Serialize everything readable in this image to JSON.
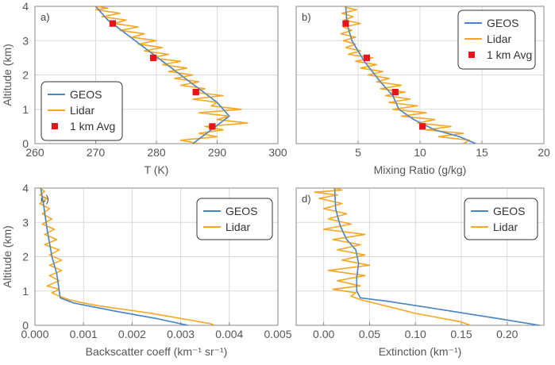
{
  "colors": {
    "model": "#4a86c5",
    "lidar": "#f5a623",
    "avg": "#e8141b",
    "grid": "#d9d9d9",
    "frame": "#888888"
  },
  "chart_data": [
    {
      "type": "line",
      "panel_label": "a)",
      "xlabel": "T (K)",
      "ylabel": "Altitude (km)",
      "xlim": [
        260,
        300
      ],
      "ylim": [
        0,
        4
      ],
      "xticks": [
        "260",
        "270",
        "280",
        "290",
        "300"
      ],
      "yticks": [
        "0",
        "1",
        "2",
        "3",
        "4"
      ],
      "legend": [
        "GEOS",
        "Lidar",
        "1 km Avg"
      ],
      "legend_position": "lower-left",
      "series": [
        {
          "name": "GEOS",
          "x": [
            286,
            289,
            292,
            290,
            287,
            284,
            281,
            278,
            275,
            272,
            270
          ],
          "y": [
            0,
            0.4,
            0.8,
            1.2,
            1.6,
            2.0,
            2.4,
            2.8,
            3.2,
            3.6,
            4.0
          ]
        },
        {
          "name": "Lidar",
          "x": [
            287,
            284,
            290,
            287,
            291,
            288,
            295,
            290,
            292,
            287,
            294,
            289,
            290,
            286,
            291,
            286,
            288,
            284,
            287,
            283,
            286,
            282,
            285,
            281,
            284,
            279,
            282,
            278,
            281,
            277,
            280,
            276,
            278,
            274,
            277,
            273,
            275,
            271,
            274,
            270,
            272,
            270,
            271
          ],
          "y": [
            0.0,
            0.1,
            0.2,
            0.3,
            0.4,
            0.5,
            0.6,
            0.7,
            0.8,
            0.9,
            1.0,
            1.1,
            1.2,
            1.3,
            1.4,
            1.5,
            1.6,
            1.7,
            1.8,
            1.9,
            2.0,
            2.1,
            2.2,
            2.3,
            2.4,
            2.5,
            2.6,
            2.7,
            2.8,
            2.9,
            3.0,
            3.1,
            3.2,
            3.3,
            3.4,
            3.5,
            3.6,
            3.7,
            3.8,
            3.9,
            3.95,
            4.0,
            4.0
          ]
        },
        {
          "name": "1 km Avg",
          "x": [
            289.2,
            286.5,
            279.5,
            272.8
          ],
          "y": [
            0.5,
            1.5,
            2.5,
            3.5
          ]
        }
      ]
    },
    {
      "type": "line",
      "panel_label": "b)",
      "xlabel": "Mixing Ratio (g/kg)",
      "ylabel": "",
      "xlim": [
        0,
        20
      ],
      "ylim": [
        0,
        4
      ],
      "xticks": [
        "5",
        "10",
        "15",
        "20"
      ],
      "yticks": [],
      "legend": [
        "GEOS",
        "Lidar",
        "1 km Avg"
      ],
      "legend_position": "top-right",
      "series": [
        {
          "name": "GEOS",
          "x": [
            14.5,
            13.2,
            11.2,
            9.5,
            8.3,
            7.8,
            6.8,
            5.5,
            4.5,
            4.1,
            4.0
          ],
          "y": [
            0,
            0.2,
            0.4,
            0.7,
            1.0,
            1.4,
            1.8,
            2.4,
            3.0,
            3.5,
            4.0
          ]
        },
        {
          "name": "Lidar",
          "x": [
            13.5,
            14.0,
            11.5,
            13.5,
            10.5,
            12.5,
            9.8,
            11.2,
            8.5,
            10.5,
            7.8,
            9.8,
            7.5,
            9.2,
            7.2,
            8.8,
            6.8,
            8.5,
            6.5,
            7.5,
            5.8,
            7.0,
            5.2,
            6.5,
            4.8,
            6.2,
            4.2,
            5.2,
            4.0,
            4.8,
            3.8,
            4.8,
            3.6,
            4.5,
            3.8,
            5.2,
            3.9,
            4.6,
            3.7,
            4.9,
            4.2,
            3.9
          ],
          "y": [
            0.0,
            0.1,
            0.2,
            0.3,
            0.4,
            0.5,
            0.6,
            0.7,
            0.8,
            0.9,
            1.0,
            1.1,
            1.2,
            1.3,
            1.4,
            1.5,
            1.6,
            1.7,
            1.8,
            1.9,
            2.0,
            2.1,
            2.2,
            2.3,
            2.4,
            2.5,
            2.6,
            2.7,
            2.8,
            2.9,
            3.0,
            3.1,
            3.2,
            3.3,
            3.4,
            3.5,
            3.6,
            3.7,
            3.8,
            3.9,
            3.95,
            4.0
          ]
        },
        {
          "name": "1 km Avg",
          "x": [
            10.2,
            8.0,
            5.7,
            4.0
          ],
          "y": [
            0.5,
            1.5,
            2.5,
            3.5
          ]
        }
      ]
    },
    {
      "type": "line",
      "panel_label": "c)",
      "xlabel": "Backscatter coeff (km⁻¹ sr⁻¹)",
      "ylabel": "Altitude (km)",
      "xlim": [
        0,
        0.005
      ],
      "ylim": [
        0,
        4
      ],
      "xticks": [
        "0.000",
        "0.001",
        "0.002",
        "0.003",
        "0.004",
        "0.005"
      ],
      "yticks": [
        "0",
        "1",
        "2",
        "3",
        "4"
      ],
      "legend": [
        "GEOS",
        "Lidar"
      ],
      "legend_position": "top-right",
      "series": [
        {
          "name": "GEOS",
          "x": [
            0.00315,
            0.0025,
            0.0017,
            0.0008,
            0.00052,
            0.0005,
            0.00045,
            0.00035,
            0.00025,
            0.00018,
            0.00012
          ],
          "y": [
            0,
            0.2,
            0.4,
            0.65,
            0.8,
            1.0,
            1.5,
            2.0,
            2.8,
            3.5,
            4.0
          ]
        },
        {
          "name": "Lidar",
          "x": [
            0.0037,
            0.0036,
            0.0032,
            0.0028,
            0.0024,
            0.0019,
            0.0014,
            0.001,
            0.0007,
            0.0005,
            0.00035,
            0.0005,
            0.00025,
            0.0005,
            0.0003,
            0.00055,
            0.0003,
            0.00055,
            0.0003,
            0.0005,
            0.0002,
            0.00045,
            0.0002,
            0.0004,
            0.00015,
            0.00035,
            0.00015,
            0.0003,
            0.0001,
            0.00025,
            0.0001,
            0.0002,
            0.00015,
            0.0001
          ],
          "y": [
            0.0,
            0.05,
            0.15,
            0.25,
            0.35,
            0.45,
            0.55,
            0.65,
            0.75,
            0.85,
            0.95,
            1.05,
            1.15,
            1.3,
            1.45,
            1.6,
            1.75,
            1.9,
            2.05,
            2.2,
            2.35,
            2.5,
            2.65,
            2.8,
            2.95,
            3.1,
            3.25,
            3.4,
            3.55,
            3.7,
            3.8,
            3.9,
            3.95,
            4.0
          ]
        }
      ]
    },
    {
      "type": "line",
      "panel_label": "d)",
      "xlabel": "Extinction (km⁻¹)",
      "ylabel": "",
      "xlim": [
        -0.03,
        0.24
      ],
      "ylim": [
        0,
        4
      ],
      "xticks": [
        "0.00",
        "0.05",
        "0.10",
        "0.15",
        "0.20"
      ],
      "yticks": [],
      "legend": [
        "GEOS",
        "Lidar"
      ],
      "legend_position": "top-right",
      "series": [
        {
          "name": "GEOS",
          "x": [
            0.235,
            0.19,
            0.13,
            0.07,
            0.04,
            0.036,
            0.036,
            0.038,
            0.035,
            0.025,
            0.018,
            0.013,
            0.012
          ],
          "y": [
            0,
            0.2,
            0.45,
            0.7,
            0.8,
            1.0,
            1.4,
            1.8,
            2.2,
            2.5,
            2.9,
            3.4,
            4.0
          ]
        },
        {
          "name": "Lidar",
          "x": [
            0.16,
            0.15,
            0.13,
            0.1,
            0.07,
            0.04,
            0.03,
            0.035,
            0.01,
            0.04,
            0.015,
            0.045,
            0.005,
            0.05,
            0.02,
            0.045,
            0.015,
            0.04,
            0.01,
            0.045,
            0.0,
            0.03,
            0.005,
            0.025,
            0.0,
            0.02,
            -0.005,
            0.015,
            -0.01,
            0.02,
            0.015,
            0.01
          ],
          "y": [
            0.0,
            0.1,
            0.2,
            0.35,
            0.55,
            0.75,
            0.85,
            0.95,
            1.05,
            1.15,
            1.3,
            1.45,
            1.6,
            1.75,
            1.9,
            2.05,
            2.2,
            2.35,
            2.5,
            2.65,
            2.8,
            2.95,
            3.1,
            3.25,
            3.4,
            3.55,
            3.7,
            3.8,
            3.88,
            3.94,
            3.98,
            4.0
          ]
        }
      ]
    }
  ]
}
